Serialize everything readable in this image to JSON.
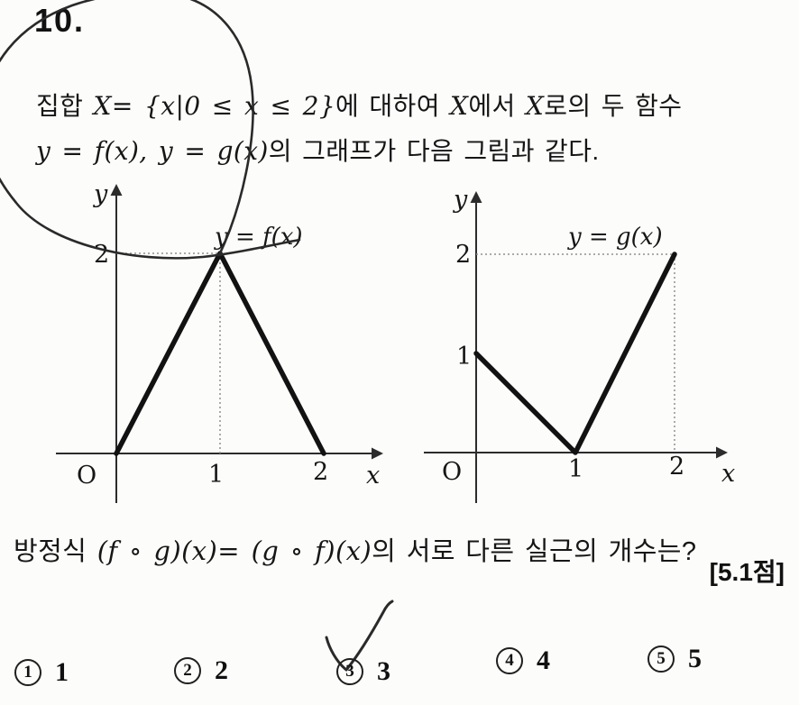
{
  "question": {
    "number": "10.",
    "points_label": "[5.1점]",
    "statement": {
      "line1": [
        {
          "text": "집합 "
        },
        {
          "text": "X"
        },
        {
          "text": "= {"
        },
        {
          "text": "x"
        },
        {
          "text": "|0 ≤ "
        },
        {
          "text": "x"
        },
        {
          "text": " ≤ 2}"
        },
        {
          "text": "에 대하여 "
        },
        {
          "text": "X"
        },
        {
          "text": "에서 "
        },
        {
          "text": "X"
        },
        {
          "text": "로의 두 함수"
        }
      ],
      "line2": [
        {
          "text": "y = f(x), y = g(x)"
        },
        {
          "text": "의 그래프가 다음 그림과 같다."
        }
      ],
      "prompt": [
        {
          "text": "방정식 "
        },
        {
          "text": "(f ∘ g)(x)= (g ∘ f)(x)"
        },
        {
          "text": "의 서로 다른 실근의 개수는?"
        }
      ]
    }
  },
  "chart_data": [
    {
      "type": "line",
      "title": "y = f(x)",
      "x_label": "x",
      "y_label": "y",
      "origin_label": "O",
      "x_ticks": [
        "1",
        "2"
      ],
      "y_ticks": [
        "2"
      ],
      "points": [
        [
          0,
          0
        ],
        [
          1,
          2
        ],
        [
          2,
          0
        ]
      ],
      "helper_lines": [
        [
          [
            0,
            2
          ],
          [
            1,
            2
          ]
        ],
        [
          [
            1,
            2
          ],
          [
            1,
            0
          ]
        ]
      ],
      "xlim": [
        0,
        2.4
      ],
      "ylim": [
        0,
        2.6
      ],
      "grid": "off",
      "legend": "none"
    },
    {
      "type": "line",
      "title": "y = g(x)",
      "x_label": "x",
      "y_label": "y",
      "origin_label": "O",
      "x_ticks": [
        "1",
        "2"
      ],
      "y_ticks": [
        "1",
        "2"
      ],
      "points": [
        [
          0,
          1
        ],
        [
          1,
          0
        ],
        [
          2,
          2
        ]
      ],
      "helper_lines": [
        [
          [
            0,
            2
          ],
          [
            2,
            2
          ]
        ],
        [
          [
            2,
            2
          ],
          [
            2,
            0
          ]
        ]
      ],
      "xlim": [
        0,
        2.4
      ],
      "ylim": [
        0,
        2.6
      ],
      "grid": "off",
      "legend": "none"
    }
  ],
  "choices": [
    {
      "marker": "1",
      "value": "1"
    },
    {
      "marker": "2",
      "value": "2"
    },
    {
      "marker": "3",
      "value": "3"
    },
    {
      "marker": "4",
      "value": "4"
    },
    {
      "marker": "5",
      "value": "5"
    }
  ]
}
